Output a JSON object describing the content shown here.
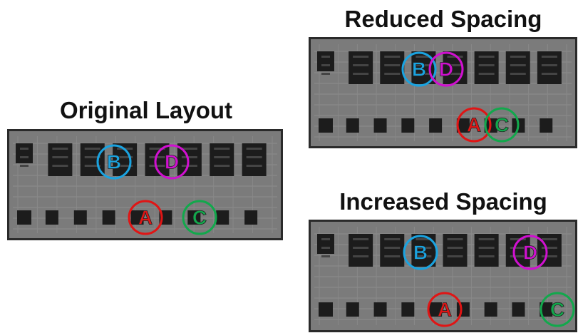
{
  "panels": [
    {
      "title": "Original Layout",
      "markers": [
        {
          "label": "B",
          "color": "#1aa3e0"
        },
        {
          "label": "D",
          "color": "#d010d0"
        },
        {
          "label": "A",
          "color": "#e01515"
        },
        {
          "label": "C",
          "color": "#12a84c"
        }
      ]
    },
    {
      "title": "Reduced Spacing",
      "markers": [
        {
          "label": "B",
          "color": "#1aa3e0"
        },
        {
          "label": "D",
          "color": "#d010d0"
        },
        {
          "label": "A",
          "color": "#e01515"
        },
        {
          "label": "C",
          "color": "#12a84c"
        }
      ]
    },
    {
      "title": "Increased Spacing",
      "markers": [
        {
          "label": "B",
          "color": "#1aa3e0"
        },
        {
          "label": "D",
          "color": "#d010d0"
        },
        {
          "label": "A",
          "color": "#e01515"
        },
        {
          "label": "C",
          "color": "#12a84c"
        }
      ]
    }
  ]
}
